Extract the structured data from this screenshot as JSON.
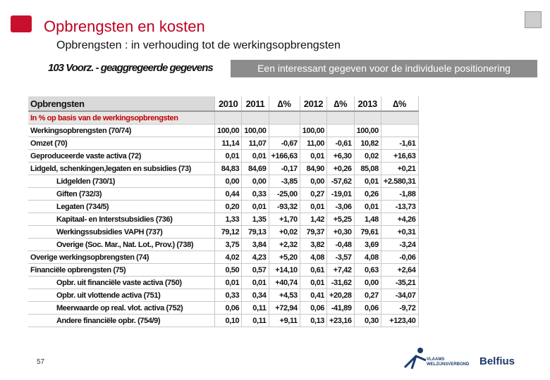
{
  "header": {
    "title": "Opbrengsten en kosten",
    "subtitle": "Opbrengsten : in verhouding tot de werkingsopbrengsten",
    "section": "103  Voorz. - geaggregeerde gegevens",
    "tooltip": "Een interessant gegeven voor de individuele positionering"
  },
  "table": {
    "header": [
      "Opbrengsten",
      "2010",
      "2011",
      "∆%",
      "2012",
      "∆%",
      "2013",
      "∆%"
    ],
    "subheader": "In % op basis van de werkingsopbrengsten",
    "rows": [
      {
        "label": "Werkingsopbrengsten (70/74)",
        "cells": [
          "100,00",
          "100,00",
          null,
          "100,00",
          null,
          "100,00",
          null
        ]
      },
      {
        "label": "Omzet (70)",
        "cells": [
          "11,14",
          "11,07",
          "-0,67",
          "11,00",
          "-0,61",
          "10,82",
          "-1,61"
        ]
      },
      {
        "label": "Geproduceerde vaste activa (72)",
        "cells": [
          "0,01",
          "0,01",
          "+166,63",
          "0,01",
          "+6,30",
          "0,02",
          "+16,63"
        ]
      },
      {
        "label": "Lidgeld, schenkingen,legaten en subsidies (73)",
        "cells": [
          "84,83",
          "84,69",
          "-0,17",
          "84,90",
          "+0,26",
          "85,08",
          "+0,21"
        ],
        "children": [
          {
            "label": "Lidgelden (730/1)",
            "cells": [
              "0,00",
              "0,00",
              "-3,85",
              "0,00",
              "-57,62",
              "0,01",
              "+2.580,31"
            ]
          },
          {
            "label": "Giften (732/3)",
            "cells": [
              "0,44",
              "0,33",
              "-25,00",
              "0,27",
              "-19,01",
              "0,26",
              "-1,88"
            ]
          },
          {
            "label": "Legaten (734/5)",
            "cells": [
              "0,20",
              "0,01",
              "-93,32",
              "0,01",
              "-3,06",
              "0,01",
              "-13,73"
            ]
          },
          {
            "label": "Kapitaal- en Interstsubsidies (736)",
            "cells": [
              "1,33",
              "1,35",
              "+1,70",
              "1,42",
              "+5,25",
              "1,48",
              "+4,26"
            ]
          },
          {
            "label": "Werkingssubsidies VAPH (737)",
            "cells": [
              "79,12",
              "79,13",
              "+0,02",
              "79,37",
              "+0,30",
              "79,61",
              "+0,31"
            ]
          },
          {
            "label": "Overige (Soc. Mar., Nat. Lot., Prov.) (738)",
            "cells": [
              "3,75",
              "3,84",
              "+2,32",
              "3,82",
              "-0,48",
              "3,69",
              "-3,24"
            ]
          }
        ]
      },
      {
        "label": "Overige werkingsopbrengsten (74)",
        "cells": [
          "4,02",
          "4,23",
          "+5,20",
          "4,08",
          "-3,57",
          "4,08",
          "-0,06"
        ]
      },
      {
        "label": "Financiële opbrengsten (75)",
        "cells": [
          "0,50",
          "0,57",
          "+14,10",
          "0,61",
          "+7,42",
          "0,63",
          "+2,64"
        ],
        "children": [
          {
            "label": "Opbr. uit financiële vaste activa (750)",
            "cells": [
              "0,01",
              "0,01",
              "+40,74",
              "0,01",
              "-31,62",
              "0,00",
              "-35,21"
            ]
          },
          {
            "label": "Opbr. uit vlottende activa (751)",
            "cells": [
              "0,33",
              "0,34",
              "+4,53",
              "0,41",
              "+20,28",
              "0,27",
              "-34,07"
            ]
          },
          {
            "label": "Meerwaarde op real. vlot. activa (752)",
            "cells": [
              "0,06",
              "0,11",
              "+72,94",
              "0,06",
              "-41,89",
              "0,06",
              "-9,72"
            ]
          },
          {
            "label": "Andere financiële opbr. (754/9)",
            "cells": [
              "0,10",
              "0,11",
              "+9,11",
              "0,13",
              "+23,16",
              "0,30",
              "+123,40"
            ]
          }
        ]
      }
    ]
  },
  "footer": {
    "page": "57",
    "logo_left": "VLAAMS WELZIJNSVERBOND",
    "logo_right": "Belfius"
  }
}
